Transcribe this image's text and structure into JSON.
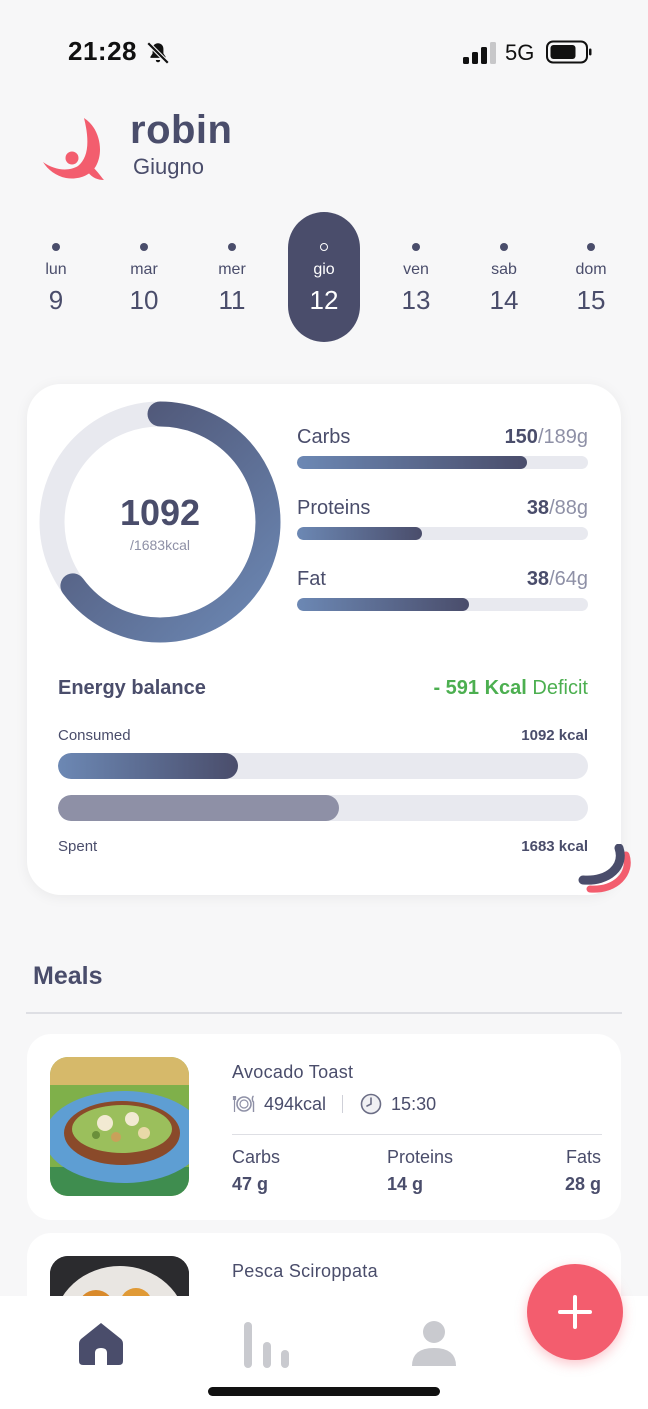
{
  "status_bar": {
    "time": "21:28",
    "network": "5G"
  },
  "header": {
    "brand": "robin",
    "month": "Giugno"
  },
  "week": [
    {
      "name": "lun",
      "num": "9"
    },
    {
      "name": "mar",
      "num": "10"
    },
    {
      "name": "mer",
      "num": "11"
    },
    {
      "name": "gio",
      "num": "12",
      "selected": true
    },
    {
      "name": "ven",
      "num": "13"
    },
    {
      "name": "sab",
      "num": "14"
    },
    {
      "name": "dom",
      "num": "15"
    }
  ],
  "summary": {
    "calories_value": "1092",
    "calories_goal": "/1683kcal",
    "calories_fraction": 0.649,
    "macros": [
      {
        "name": "Carbs",
        "value": "150",
        "goal": "/189g",
        "fraction": 0.79
      },
      {
        "name": "Proteins",
        "value": "38",
        "goal": "/88g",
        "fraction": 0.43
      },
      {
        "name": "Fat",
        "value": "38",
        "goal": "/64g",
        "fraction": 0.59
      }
    ],
    "energy_title": "Energy balance",
    "deficit_value": "- 591 Kcal",
    "deficit_label": "Deficit",
    "consumed_label": "Consumed",
    "consumed_value": "1092 kcal",
    "consumed_fraction": 0.34,
    "spent_label": "Spent",
    "spent_value": "1683 kcal",
    "spent_fraction": 0.53
  },
  "meals": {
    "title": "Meals",
    "items": [
      {
        "name": "Avocado Toast",
        "kcal": "494kcal",
        "time": "15:30",
        "carbs_label": "Carbs",
        "carbs": "47 g",
        "proteins_label": "Proteins",
        "proteins": "14 g",
        "fats_label": "Fats",
        "fats": "28 g"
      },
      {
        "name": "Pesca Sciroppata"
      }
    ]
  },
  "colors": {
    "primary": "#4a4d6b",
    "accent": "#f35d6e",
    "deficit": "#4caf50",
    "track": "#e8e9ef"
  },
  "icons": [
    "bell-slash-icon",
    "signal-icon",
    "battery-icon",
    "robin-logo-icon",
    "plate-icon",
    "clock-icon",
    "home-icon",
    "stats-icon",
    "profile-icon",
    "plus-icon"
  ]
}
